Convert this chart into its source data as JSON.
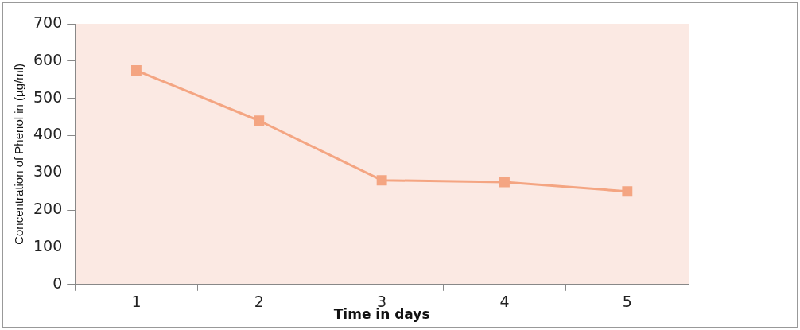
{
  "chart_data": {
    "type": "line",
    "xlabel": "Time in days",
    "ylabel": "Concentration of Phenol in (µg/ml)",
    "categories": [
      "1",
      "2",
      "3",
      "4",
      "5"
    ],
    "series": [
      {
        "color": "#f4a582",
        "values": [
          575,
          440,
          280,
          275,
          250
        ]
      }
    ],
    "ylim": [
      0,
      700
    ],
    "yticks": [
      0,
      100,
      200,
      300,
      400,
      500,
      600,
      700
    ],
    "marker": "square",
    "line_style": "solid",
    "grid": false,
    "legend": false
  }
}
